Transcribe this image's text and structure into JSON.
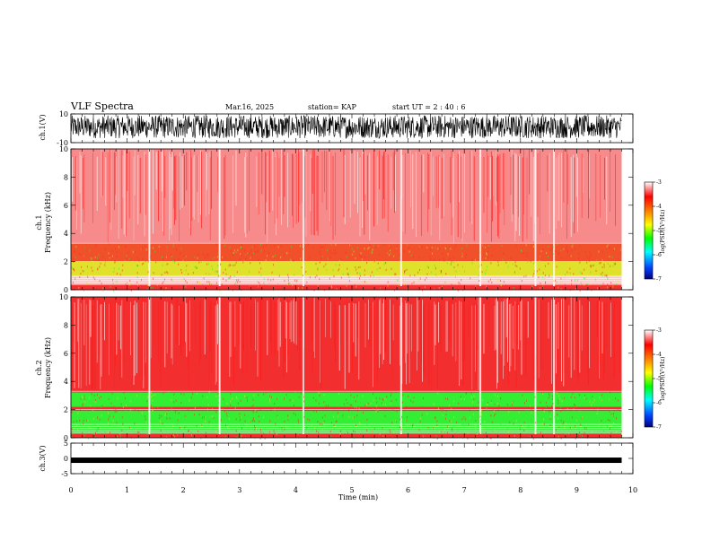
{
  "header": {
    "title": "VLF Spectra",
    "date": "Mar.16, 2025",
    "station": "station= KAP",
    "start_ut": "start  UT  =   2  : 40 : 6"
  },
  "chart_data": [
    {
      "id": "ch1-waveform",
      "type": "line",
      "ylabel": "ch.1(V)",
      "ylim": [
        -10,
        10
      ],
      "y_ticks": [
        "10",
        "-10"
      ],
      "x_range_min": [
        0,
        9.8
      ],
      "amplitude_range": [
        -7,
        9
      ]
    },
    {
      "id": "ch1-spectrogram",
      "type": "heatmap",
      "ylabel_lines": [
        "ch.1",
        "Frequency  (kHz)"
      ],
      "ylim_khz": [
        0,
        10
      ],
      "y_ticks": [
        "0",
        "2",
        "4",
        "6",
        "8",
        "10"
      ],
      "x_range_min": [
        0,
        9.8
      ],
      "bands": [
        {
          "from_khz": 0,
          "to_khz": 0.4,
          "level": "red"
        },
        {
          "from_khz": 0.4,
          "to_khz": 1.0,
          "level": "white-lines"
        },
        {
          "from_khz": 1.0,
          "to_khz": 2.0,
          "level": "yellow"
        },
        {
          "from_khz": 2.0,
          "to_khz": 3.3,
          "level": "orange-red"
        },
        {
          "from_khz": 3.3,
          "to_khz": 10,
          "level": "pink-red"
        }
      ]
    },
    {
      "id": "ch2-spectrogram",
      "type": "heatmap",
      "ylabel_lines": [
        "ch.2",
        "Frequency  (kHz)"
      ],
      "ylim_khz": [
        0,
        10
      ],
      "y_ticks": [
        "0",
        "2",
        "4",
        "6",
        "8",
        "10"
      ],
      "x_range_min": [
        0,
        9.8
      ],
      "bands": [
        {
          "from_khz": 0,
          "to_khz": 0.3,
          "level": "red"
        },
        {
          "from_khz": 0.3,
          "to_khz": 1.9,
          "level": "green"
        },
        {
          "from_khz": 1.9,
          "to_khz": 2.2,
          "level": "red"
        },
        {
          "from_khz": 2.2,
          "to_khz": 3.2,
          "level": "green"
        },
        {
          "from_khz": 3.2,
          "to_khz": 10,
          "level": "red"
        }
      ]
    },
    {
      "id": "ch3-waveform",
      "type": "line",
      "ylabel": "ch.3(V)",
      "ylim": [
        -5,
        5
      ],
      "y_ticks": [
        "5",
        "0",
        "-5"
      ],
      "x_range_min": [
        0,
        9.8
      ],
      "band_level": -0.6,
      "xlabel": "Time  (min)",
      "x_ticks": [
        "0",
        "1",
        "2",
        "3",
        "4",
        "5",
        "6",
        "7",
        "8",
        "9",
        "10"
      ],
      "xlim": [
        0,
        10
      ]
    }
  ],
  "colorbars": [
    {
      "id": "ch1",
      "ticks": [
        "-3",
        "-4",
        "-5",
        "-6",
        "-7"
      ],
      "label": "log(PSD)(V²/Hz)"
    },
    {
      "id": "ch2",
      "ticks": [
        "-3",
        "-4",
        "-5",
        "-6",
        "-7"
      ],
      "label": "log(PSD)(V²/Hz)"
    }
  ],
  "colors": {
    "axis": "#000000",
    "spec_red": "#f32e2e",
    "spec_pink": "#f78a8a",
    "spec_white": "#fff4f4",
    "spec_yellow": "#dfe12a",
    "spec_green": "#33ee33",
    "colorbar_stops": [
      "#000080",
      "#0044ff",
      "#00ffff",
      "#00ff00",
      "#ffff00",
      "#ff8000",
      "#ff0000",
      "#ffffff"
    ]
  }
}
